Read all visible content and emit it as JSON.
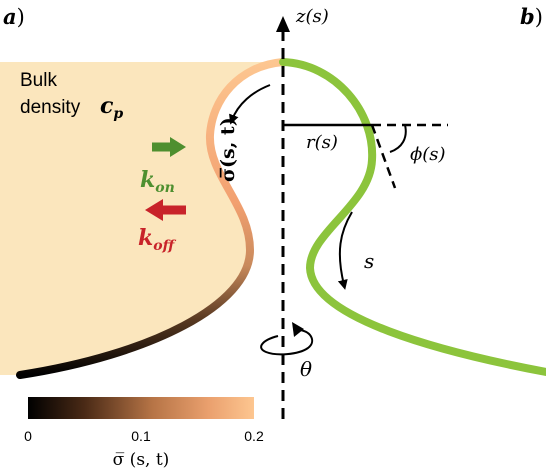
{
  "panel_labels": {
    "a": {
      "letter": "a",
      "paren": ")"
    },
    "b": {
      "letter": "b",
      "paren": ")"
    }
  },
  "bulk_label": {
    "line1": "Bulk",
    "line2": "density",
    "symbol": "c",
    "subscript": "p"
  },
  "rates": {
    "on": {
      "symbol": "k",
      "subscript": "on"
    },
    "off": {
      "symbol": "k",
      "subscript": "off"
    }
  },
  "axis": {
    "z_label": "z(s)"
  },
  "annotations": {
    "sigma": "σ̅(s, t)",
    "r": "r(s)",
    "phi": "ϕ(s)",
    "s": "s",
    "theta": "θ"
  },
  "colorbar": {
    "ticks": [
      "0",
      "0.1",
      "0.2"
    ],
    "label": "σ̅ (s, t)",
    "min": 0,
    "max": 0.2
  },
  "colors": {
    "bulk_fill": "#fbe6bd",
    "membrane_green": "#8cc43c",
    "on_arrow": "#4e8f2f",
    "off_arrow": "#c8232a",
    "colormap_low": "#000000",
    "colormap_high": "#fdc690"
  }
}
